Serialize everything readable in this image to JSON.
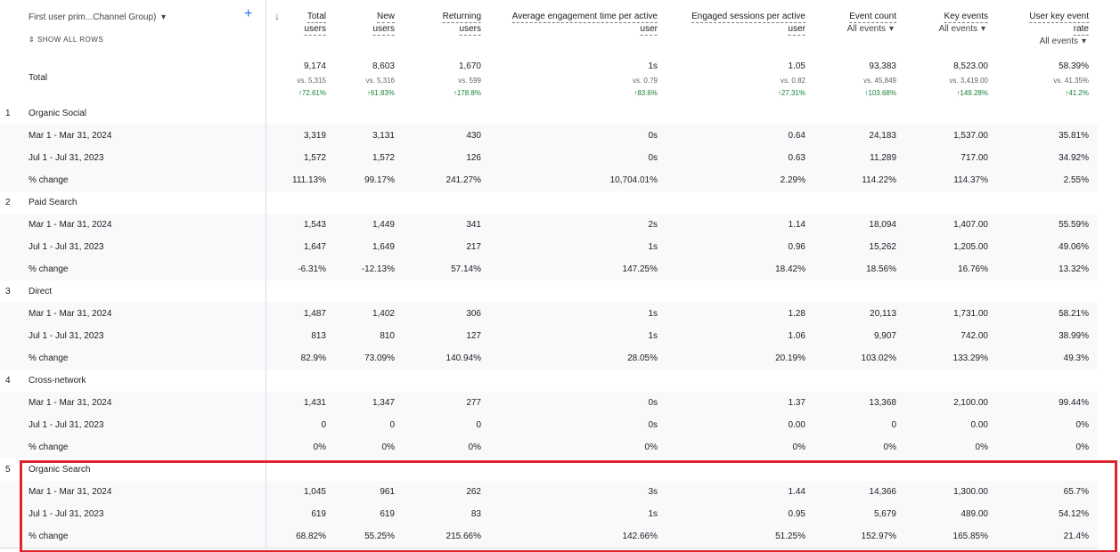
{
  "header": {
    "dimension": "First user prim...Channel Group)",
    "show_all": "SHOW ALL ROWS",
    "columns": [
      {
        "lines": [
          "Total",
          "users"
        ]
      },
      {
        "lines": [
          "New",
          "users"
        ]
      },
      {
        "lines": [
          "Returning",
          "users"
        ]
      },
      {
        "lines": [
          "Average engagement time per active",
          "user"
        ]
      },
      {
        "lines": [
          "Engaged sessions per active",
          "user"
        ]
      },
      {
        "lines": [
          "Event count"
        ],
        "sub": "All events"
      },
      {
        "lines": [
          "Key events"
        ],
        "sub": "All events"
      },
      {
        "lines": [
          "User key event",
          "rate"
        ],
        "sub": "All events"
      }
    ]
  },
  "total": {
    "label": "Total",
    "cells": [
      {
        "value": "9,174",
        "vs": "vs. 5,315",
        "change": "72.61%"
      },
      {
        "value": "8,603",
        "vs": "vs. 5,316",
        "change": "61.83%"
      },
      {
        "value": "1,670",
        "vs": "vs. 599",
        "change": "178.8%"
      },
      {
        "value": "1s",
        "vs": "vs. 0.79",
        "change": "83.6%"
      },
      {
        "value": "1.05",
        "vs": "vs. 0.82",
        "change": "27.31%"
      },
      {
        "value": "93,383",
        "vs": "vs. 45,849",
        "change": "103.68%"
      },
      {
        "value": "8,523.00",
        "vs": "vs. 3,419.00",
        "change": "149.28%"
      },
      {
        "value": "58.39%",
        "vs": "vs. 41.35%",
        "change": "41.2%"
      }
    ]
  },
  "groups": [
    {
      "index": "1",
      "name": "Organic Social",
      "rows": [
        {
          "label": "Mar 1 - Mar 31, 2024",
          "values": [
            "3,319",
            "3,131",
            "430",
            "0s",
            "0.64",
            "24,183",
            "1,537.00",
            "35.81%"
          ]
        },
        {
          "label": "Jul 1 - Jul 31, 2023",
          "values": [
            "1,572",
            "1,572",
            "126",
            "0s",
            "0.63",
            "11,289",
            "717.00",
            "34.92%"
          ]
        },
        {
          "label": "% change",
          "values": [
            "111.13%",
            "99.17%",
            "241.27%",
            "10,704.01%",
            "2.29%",
            "114.22%",
            "114.37%",
            "2.55%"
          ]
        }
      ]
    },
    {
      "index": "2",
      "name": "Paid Search",
      "rows": [
        {
          "label": "Mar 1 - Mar 31, 2024",
          "values": [
            "1,543",
            "1,449",
            "341",
            "2s",
            "1.14",
            "18,094",
            "1,407.00",
            "55.59%"
          ]
        },
        {
          "label": "Jul 1 - Jul 31, 2023",
          "values": [
            "1,647",
            "1,649",
            "217",
            "1s",
            "0.96",
            "15,262",
            "1,205.00",
            "49.06%"
          ]
        },
        {
          "label": "% change",
          "values": [
            "-6.31%",
            "-12.13%",
            "57.14%",
            "147.25%",
            "18.42%",
            "18.56%",
            "16.76%",
            "13.32%"
          ]
        }
      ]
    },
    {
      "index": "3",
      "name": "Direct",
      "rows": [
        {
          "label": "Mar 1 - Mar 31, 2024",
          "values": [
            "1,487",
            "1,402",
            "306",
            "1s",
            "1.28",
            "20,113",
            "1,731.00",
            "58.21%"
          ]
        },
        {
          "label": "Jul 1 - Jul 31, 2023",
          "values": [
            "813",
            "810",
            "127",
            "1s",
            "1.06",
            "9,907",
            "742.00",
            "38.99%"
          ]
        },
        {
          "label": "% change",
          "values": [
            "82.9%",
            "73.09%",
            "140.94%",
            "28.05%",
            "20.19%",
            "103.02%",
            "133.29%",
            "49.3%"
          ]
        }
      ]
    },
    {
      "index": "4",
      "name": "Cross-network",
      "rows": [
        {
          "label": "Mar 1 - Mar 31, 2024",
          "values": [
            "1,431",
            "1,347",
            "277",
            "0s",
            "1.37",
            "13,368",
            "2,100.00",
            "99.44%"
          ]
        },
        {
          "label": "Jul 1 - Jul 31, 2023",
          "values": [
            "0",
            "0",
            "0",
            "0s",
            "0.00",
            "0",
            "0.00",
            "0%"
          ]
        },
        {
          "label": "% change",
          "values": [
            "0%",
            "0%",
            "0%",
            "0%",
            "0%",
            "0%",
            "0%",
            "0%"
          ]
        }
      ]
    },
    {
      "index": "5",
      "name": "Organic Search",
      "rows": [
        {
          "label": "Mar 1 - Mar 31, 2024",
          "values": [
            "1,045",
            "961",
            "262",
            "3s",
            "1.44",
            "14,366",
            "1,300.00",
            "65.7%"
          ]
        },
        {
          "label": "Jul 1 - Jul 31, 2023",
          "values": [
            "619",
            "619",
            "83",
            "1s",
            "0.95",
            "5,679",
            "489.00",
            "54.12%"
          ]
        },
        {
          "label": "% change",
          "values": [
            "68.82%",
            "55.25%",
            "215.66%",
            "142.66%",
            "51.25%",
            "152.97%",
            "165.85%",
            "21.4%"
          ]
        }
      ]
    }
  ]
}
